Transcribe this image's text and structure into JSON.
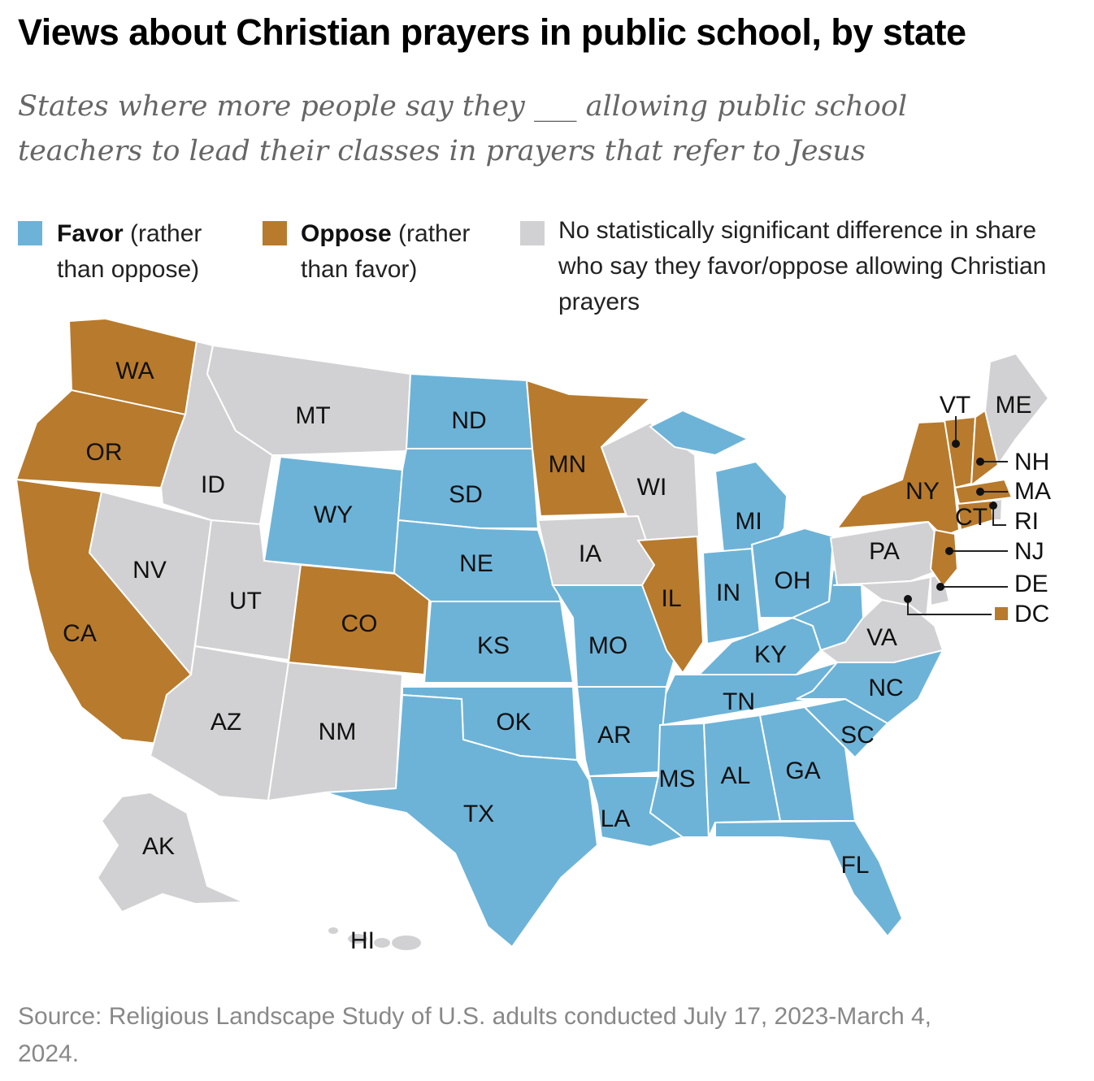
{
  "title": "Views about Christian prayers in public school, by state",
  "subtitle": "States where more people say they ___ allowing public school teachers to lead their classes in prayers that refer to Jesus",
  "legend": {
    "favor": {
      "bold": "Favor",
      "rest": " (rather than oppose)",
      "color": "#6db3d8"
    },
    "oppose": {
      "bold": "Oppose",
      "rest": " (rather than favor)",
      "color": "#b87a2c"
    },
    "none": {
      "text": "No statistically significant difference in share who say they favor/oppose allowing Christian prayers",
      "color": "#d1d1d3"
    }
  },
  "states": {
    "WA": "oppose",
    "OR": "oppose",
    "CA": "oppose",
    "CO": "oppose",
    "MN": "oppose",
    "IL": "oppose",
    "NY": "oppose",
    "VT": "oppose",
    "NH": "oppose",
    "MA": "oppose",
    "CT": "oppose",
    "NJ": "oppose",
    "DC": "oppose",
    "ND": "favor",
    "SD": "favor",
    "WY": "favor",
    "NE": "favor",
    "KS": "favor",
    "OK": "favor",
    "TX": "favor",
    "MO": "favor",
    "AR": "favor",
    "LA": "favor",
    "MS": "favor",
    "AL": "favor",
    "GA": "favor",
    "FL": "favor",
    "SC": "favor",
    "NC": "favor",
    "TN": "favor",
    "KY": "favor",
    "IN": "favor",
    "OH": "favor",
    "MI": "favor",
    "WV": "favor",
    "MT": "none",
    "ID": "none",
    "NV": "none",
    "UT": "none",
    "AZ": "none",
    "NM": "none",
    "IA": "none",
    "WI": "none",
    "PA": "none",
    "VA": "none",
    "MD": "none",
    "DE": "none",
    "RI": "none",
    "ME": "none",
    "AK": "none",
    "HI": "none"
  },
  "source": "Source: Religious Landscape Study of U.S. adults conducted July 17, 2023-March 4, 2024."
}
